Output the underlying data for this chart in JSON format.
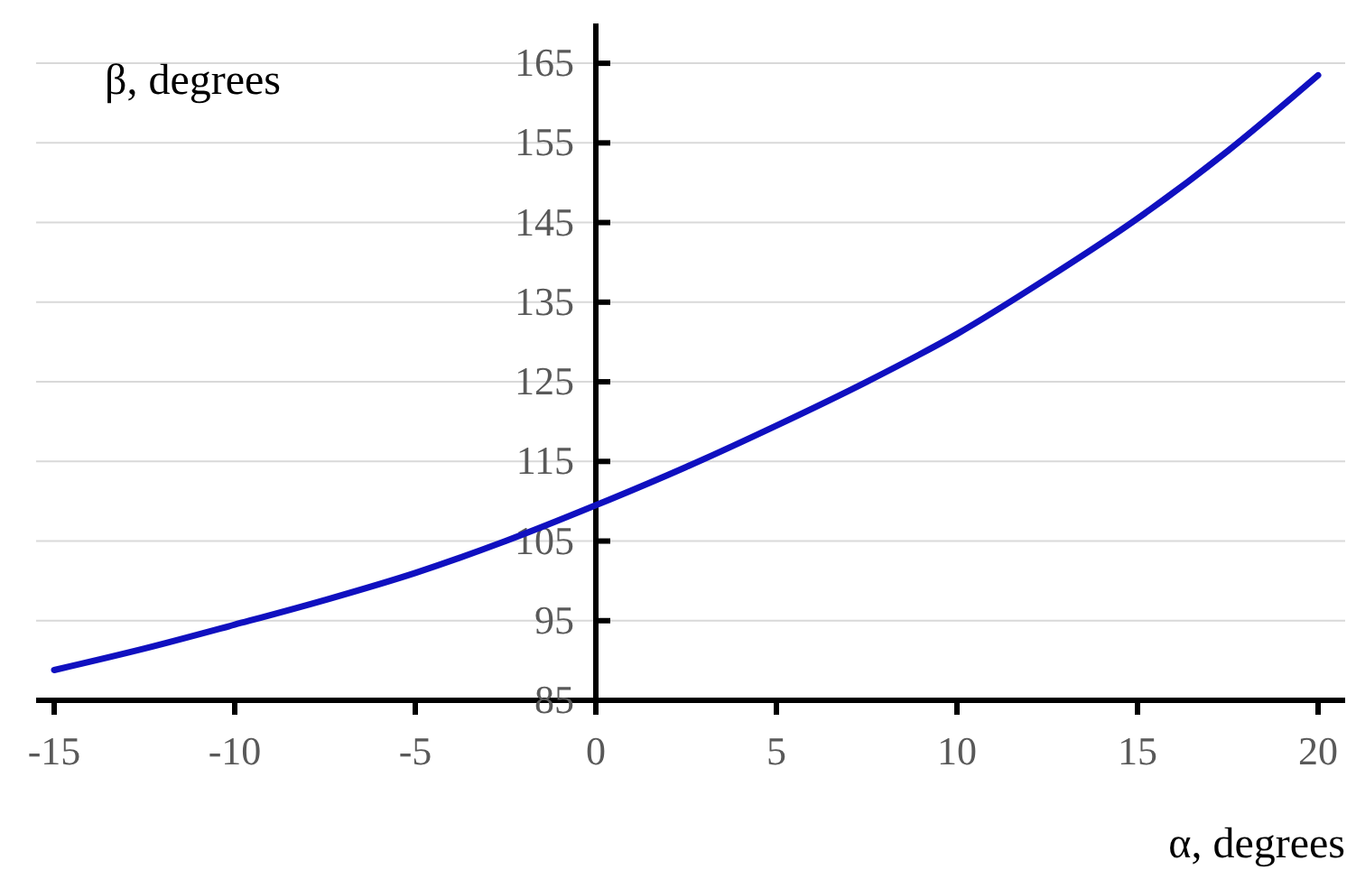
{
  "chart_data": {
    "type": "line",
    "xlabel": "α, degrees",
    "ylabel": "β, degrees",
    "x": [
      -15,
      -12.5,
      -10,
      -7.5,
      -5,
      -2.5,
      0,
      2.5,
      5,
      7.5,
      10,
      12.5,
      15,
      17.5,
      20
    ],
    "series": [
      {
        "color": "#1010c0",
        "values": [
          88.8,
          91.5,
          94.5,
          97.6,
          101,
          105,
          109.5,
          114.3,
          119.5,
          125,
          131,
          138,
          145.5,
          154,
          163.5
        ]
      }
    ],
    "xlim": [
      -15.5,
      20.75
    ],
    "xticks": [
      -15,
      -10,
      -5,
      0,
      5,
      10,
      15,
      20
    ],
    "ylim": [
      85,
      170
    ],
    "yticks": [
      85,
      95,
      105,
      115,
      125,
      135,
      145,
      155,
      165
    ],
    "grid": "y",
    "marker": "none",
    "line_style": "solid"
  }
}
